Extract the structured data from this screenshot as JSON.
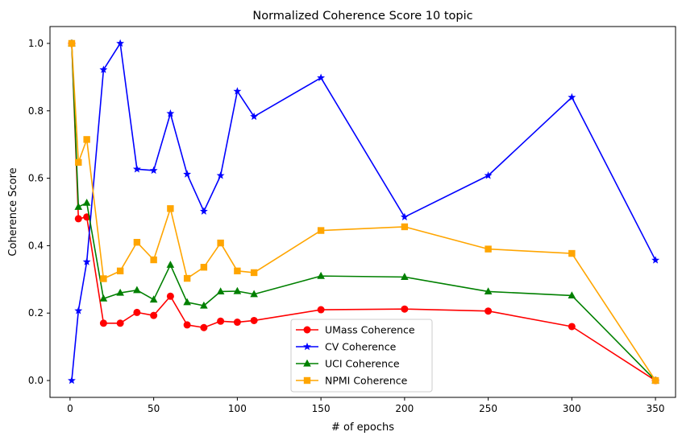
{
  "chart_data": {
    "type": "line",
    "title": "Normalized Coherence Score 10 topic",
    "xlabel": "# of epochs",
    "ylabel": "Coherence Score",
    "xlim": [
      -12,
      362
    ],
    "ylim": [
      -0.05,
      1.05
    ],
    "xticks": [
      0,
      50,
      100,
      150,
      200,
      250,
      300,
      350
    ],
    "yticks": [
      0.0,
      0.2,
      0.4,
      0.6,
      0.8,
      1.0
    ],
    "xtick_labels": [
      "0",
      "50",
      "100",
      "150",
      "200",
      "250",
      "300",
      "350"
    ],
    "ytick_labels": [
      "0.0",
      "0.2",
      "0.4",
      "0.6",
      "0.8",
      "1.0"
    ],
    "grid": false,
    "legend_position": "lower-center",
    "x": [
      1,
      5,
      10,
      20,
      30,
      40,
      50,
      60,
      70,
      80,
      90,
      100,
      110,
      150,
      200,
      250,
      300,
      350
    ],
    "series": [
      {
        "name": "UMass Coherence",
        "color": "#ff0000",
        "marker": "circle",
        "values": [
          1.0,
          0.48,
          0.485,
          0.17,
          0.17,
          0.202,
          0.193,
          0.25,
          0.165,
          0.157,
          0.176,
          0.173,
          0.178,
          0.21,
          0.212,
          0.206,
          0.16,
          0.0
        ]
      },
      {
        "name": "CV Coherence",
        "color": "#0000ff",
        "marker": "star",
        "values": [
          0.0,
          0.207,
          0.352,
          0.922,
          1.0,
          0.627,
          0.623,
          0.792,
          0.612,
          0.502,
          0.608,
          0.858,
          0.783,
          0.898,
          0.485,
          0.608,
          0.84,
          0.357
        ]
      },
      {
        "name": "UCI Coherence",
        "color": "#008000",
        "marker": "triangle",
        "values": [
          1.0,
          0.515,
          0.527,
          0.243,
          0.26,
          0.268,
          0.24,
          0.343,
          0.232,
          0.222,
          0.264,
          0.265,
          0.256,
          0.31,
          0.307,
          0.264,
          0.252,
          0.0
        ]
      },
      {
        "name": "NPMI Coherence",
        "color": "#ffa500",
        "marker": "square",
        "values": [
          1.0,
          0.647,
          0.715,
          0.302,
          0.325,
          0.41,
          0.358,
          0.51,
          0.303,
          0.336,
          0.408,
          0.325,
          0.32,
          0.445,
          0.456,
          0.39,
          0.377,
          0.0
        ]
      }
    ]
  }
}
